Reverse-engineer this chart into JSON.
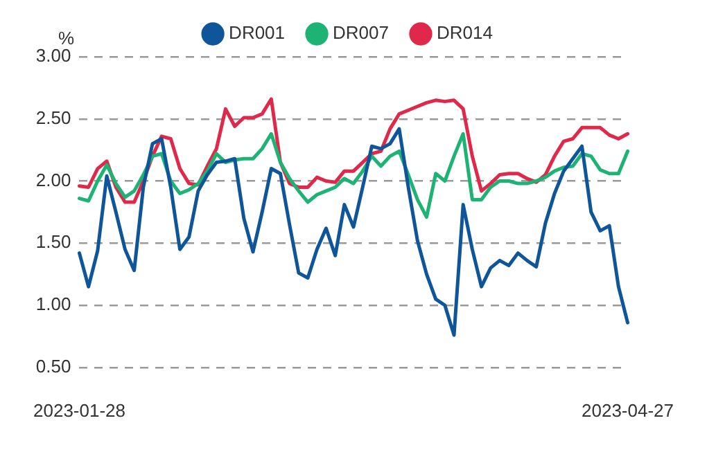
{
  "chart_data": {
    "type": "line",
    "ylabel": "%",
    "categories": [
      "2023-01-28",
      null,
      null,
      null,
      null,
      null,
      null,
      null,
      null,
      null,
      null,
      null,
      null,
      null,
      null,
      null,
      null,
      null,
      null,
      null,
      null,
      null,
      null,
      null,
      null,
      null,
      null,
      null,
      null,
      null,
      null,
      null,
      null,
      null,
      null,
      null,
      null,
      null,
      null,
      null,
      null,
      null,
      null,
      null,
      null,
      null,
      null,
      null,
      null,
      null,
      null,
      null,
      null,
      null,
      null,
      null,
      null,
      null,
      null,
      null,
      "2023-04-27"
    ],
    "series": [
      {
        "name": "DR001",
        "color": "#0f5599",
        "values": [
          1.42,
          1.15,
          1.44,
          2.04,
          1.75,
          1.45,
          1.28,
          1.95,
          2.3,
          2.34,
          1.95,
          1.45,
          1.55,
          1.92,
          2.05,
          2.15,
          2.16,
          2.18,
          1.7,
          1.43,
          1.75,
          2.1,
          2.06,
          1.65,
          1.26,
          1.22,
          1.45,
          1.62,
          1.4,
          1.81,
          1.63,
          1.95,
          2.28,
          2.26,
          2.3,
          2.42,
          1.95,
          1.52,
          1.25,
          1.05,
          1.0,
          0.76,
          1.81,
          1.45,
          1.15,
          1.3,
          1.36,
          1.32,
          1.42,
          1.36,
          1.31,
          1.66,
          1.9,
          2.08,
          2.18,
          2.28,
          1.75,
          1.6,
          1.64,
          1.15,
          0.86
        ]
      },
      {
        "name": "DR007",
        "color": "#1db374",
        "values": [
          1.86,
          1.84,
          2.0,
          2.13,
          1.98,
          1.87,
          1.92,
          2.05,
          2.2,
          2.22,
          2.0,
          1.9,
          1.93,
          1.98,
          2.08,
          2.22,
          2.15,
          2.17,
          2.18,
          2.18,
          2.26,
          2.38,
          2.15,
          2.02,
          1.92,
          1.83,
          1.89,
          1.92,
          1.95,
          2.02,
          1.98,
          2.08,
          2.2,
          2.12,
          2.2,
          2.24,
          2.05,
          1.85,
          1.71,
          2.06,
          2.0,
          2.2,
          2.38,
          1.85,
          1.85,
          1.95,
          2.0,
          2.0,
          1.98,
          1.98,
          2.0,
          2.03,
          2.08,
          2.11,
          2.12,
          2.22,
          2.2,
          2.09,
          2.06,
          2.06,
          2.24
        ]
      },
      {
        "name": "DR014",
        "color": "#e0284a",
        "values": [
          1.96,
          1.95,
          2.1,
          2.16,
          1.95,
          1.83,
          1.83,
          2.0,
          2.2,
          2.36,
          2.34,
          2.1,
          1.98,
          1.97,
          2.12,
          2.26,
          2.58,
          2.44,
          2.51,
          2.51,
          2.54,
          2.66,
          2.15,
          1.98,
          1.95,
          1.95,
          2.03,
          2.0,
          1.99,
          2.08,
          2.08,
          2.15,
          2.22,
          2.24,
          2.42,
          2.54,
          2.57,
          2.6,
          2.63,
          2.65,
          2.64,
          2.65,
          2.58,
          2.2,
          1.92,
          1.98,
          2.05,
          2.06,
          2.06,
          2.02,
          1.99,
          2.05,
          2.2,
          2.32,
          2.34,
          2.43,
          2.43,
          2.43,
          2.37,
          2.34,
          2.38
        ]
      }
    ],
    "ylim": [
      0.5,
      3
    ],
    "yticks": [
      {
        "value": 0.5,
        "label": "0.50"
      },
      {
        "value": 1,
        "label": "1.00"
      },
      {
        "value": 1.5,
        "label": "1.50"
      },
      {
        "value": 2,
        "label": "2.00"
      },
      {
        "value": 2.5,
        "label": "2.50"
      },
      {
        "value": 3,
        "label": "3.00"
      }
    ],
    "grid": "y",
    "legend": "top",
    "marker": "none",
    "line_style": "solid"
  }
}
